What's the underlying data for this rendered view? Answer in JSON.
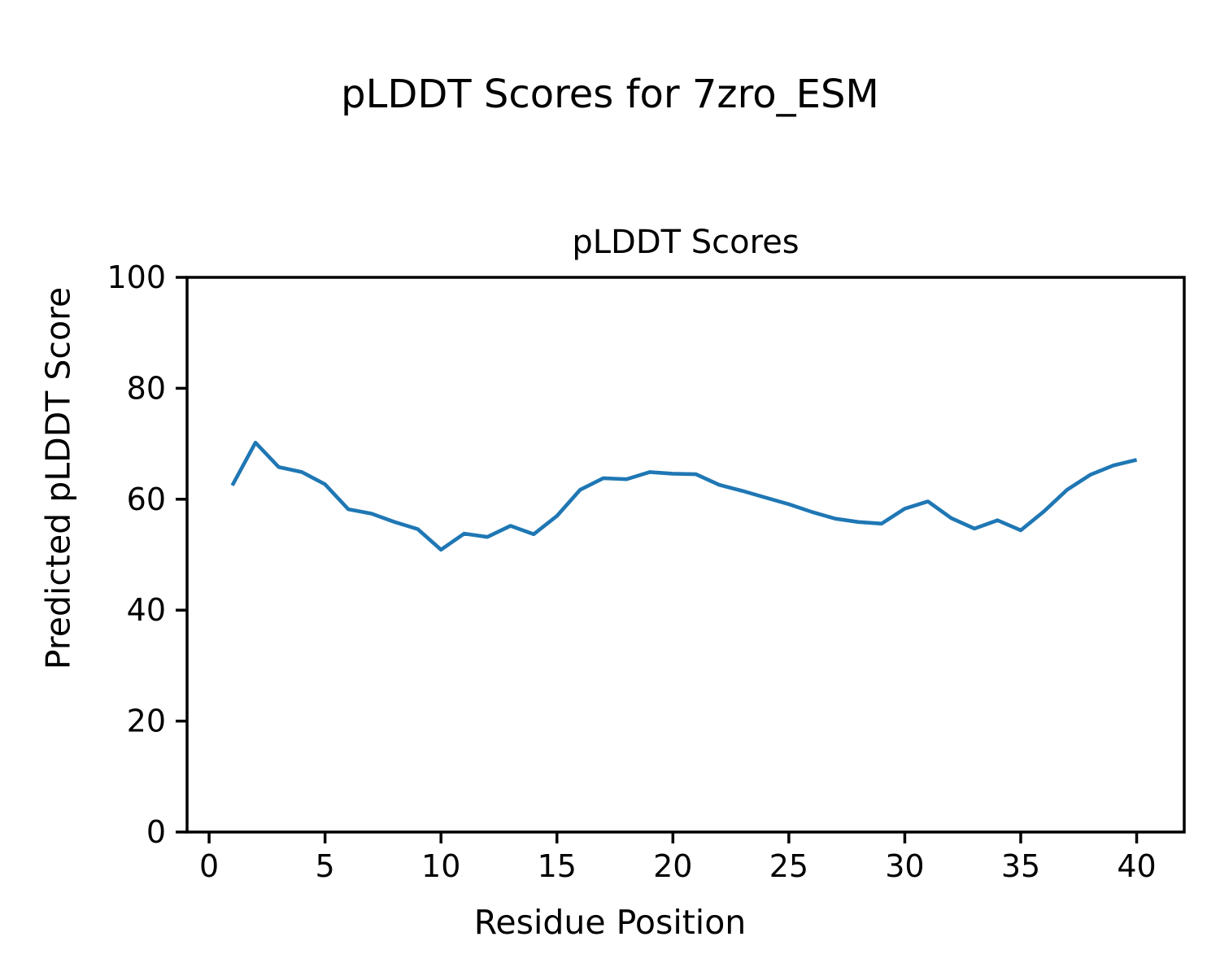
{
  "figure": {
    "suptitle": "pLDDT Scores for 7zro_ESM",
    "axes_title": "pLDDT Scores",
    "xlabel": "Residue Position",
    "ylabel": "Predicted pLDDT Score"
  },
  "chart_data": {
    "type": "line",
    "title": "pLDDT Scores",
    "suptitle": "pLDDT Scores for 7zro_ESM",
    "xlabel": "Residue Position",
    "ylabel": "Predicted pLDDT Score",
    "x": [
      1,
      2,
      3,
      4,
      5,
      6,
      7,
      8,
      9,
      10,
      11,
      12,
      13,
      14,
      15,
      16,
      17,
      18,
      19,
      20,
      21,
      22,
      23,
      24,
      25,
      26,
      27,
      28,
      29,
      30,
      31,
      32,
      33,
      34,
      35,
      36,
      37,
      38,
      39,
      40
    ],
    "y": [
      62.5,
      70.2,
      65.8,
      64.9,
      62.7,
      58.2,
      57.4,
      55.9,
      54.6,
      50.9,
      53.8,
      53.2,
      55.2,
      53.7,
      57.0,
      61.7,
      63.8,
      63.6,
      64.9,
      64.6,
      64.5,
      62.6,
      61.5,
      60.3,
      59.1,
      57.7,
      56.5,
      55.9,
      55.6,
      58.3,
      59.6,
      56.6,
      54.7,
      56.2,
      54.4,
      57.8,
      61.7,
      64.4,
      66.1,
      67.1
    ],
    "xlim": [
      -0.95,
      42.05
    ],
    "ylim": [
      0,
      100
    ],
    "xticks": [
      0,
      5,
      10,
      15,
      20,
      25,
      30,
      35,
      40
    ],
    "yticks": [
      0,
      20,
      40,
      60,
      80,
      100
    ],
    "line_color": "#1f77b4",
    "grid": false,
    "legend_position": "none"
  }
}
